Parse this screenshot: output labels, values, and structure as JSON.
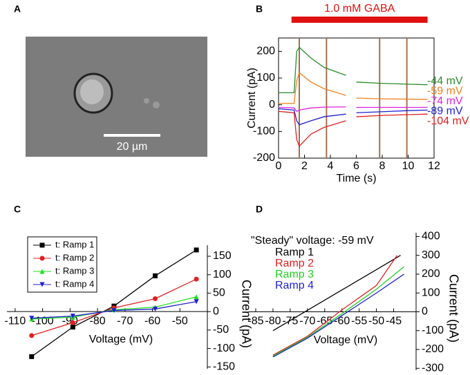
{
  "panel_a": {
    "label": "A",
    "scale_bar": "20 µm"
  },
  "chart_data": [
    {
      "type": "line",
      "label": "B",
      "annotation": "1.0 mM GABA",
      "gaba_bar": [
        1.0,
        11.5
      ],
      "ramps": [
        1.6,
        3.7,
        7.8,
        9.9
      ],
      "x_label": "Time (s)",
      "y_label": "Current (pA)",
      "xlim": [
        0,
        12
      ],
      "xticks": [
        0,
        2,
        4,
        6,
        8,
        10,
        12
      ],
      "ylim": [
        -200,
        250
      ],
      "yticks": [
        -200,
        -100,
        0,
        100,
        200
      ],
      "x": [
        0,
        1.2,
        1.4,
        1.6,
        2.5,
        3.5,
        5.2,
        5.6,
        6.0,
        8,
        10,
        11.5
      ],
      "series": [
        {
          "name": "-44 mV",
          "color": "#2a8a2a",
          "values": [
            45,
            45,
            200,
            215,
            175,
            140,
            110,
            null,
            85,
            80,
            77,
            75
          ]
        },
        {
          "name": "-59 mV",
          "color": "#f08020",
          "values": [
            5,
            5,
            90,
            120,
            85,
            60,
            35,
            null,
            25,
            22,
            21,
            20
          ]
        },
        {
          "name": "-74 mV",
          "color": "#e020e0",
          "values": [
            -10,
            -12,
            -25,
            -20,
            -12,
            -9,
            -8,
            null,
            -10,
            -10,
            -10,
            -10
          ]
        },
        {
          "name": "-89 mV",
          "color": "#2020d0",
          "values": [
            -15,
            -20,
            -60,
            -75,
            -60,
            -45,
            -35,
            null,
            -30,
            -26,
            -22,
            -20
          ]
        },
        {
          "name": "-104 mV",
          "color": "#e02020",
          "values": [
            -25,
            -30,
            -130,
            -155,
            -110,
            -85,
            -60,
            null,
            -45,
            -40,
            -37,
            -35
          ]
        }
      ]
    },
    {
      "type": "line",
      "label": "C",
      "x_label": "Voltage (mV)",
      "y_label": "Current (pA)",
      "xlim": [
        -113,
        -40
      ],
      "xticks": [
        -110,
        -100,
        -90,
        -80,
        -70,
        -60,
        -50
      ],
      "ylim": [
        -155,
        180
      ],
      "yticks": [
        -150,
        -100,
        -50,
        0,
        50,
        100,
        150
      ],
      "x": [
        -104,
        -89,
        -74,
        -59,
        -44
      ],
      "series": [
        {
          "name": "t: Ramp 1",
          "color": "#000000",
          "marker": "square",
          "values": [
            -122,
            -42,
            15,
            97,
            167
          ]
        },
        {
          "name": "t: Ramp 2",
          "color": "#e02020",
          "marker": "circle",
          "values": [
            -65,
            -30,
            10,
            35,
            88
          ]
        },
        {
          "name": "t: Ramp 3",
          "color": "#20e020",
          "marker": "triangle-up",
          "values": [
            -20,
            -15,
            5,
            12,
            40
          ]
        },
        {
          "name": "t: Ramp 4",
          "color": "#2020d0",
          "marker": "triangle-down",
          "values": [
            -18,
            -12,
            3,
            7,
            27
          ]
        }
      ]
    },
    {
      "type": "line",
      "label": "D",
      "annotation": "\"Steady\" voltage: -59 mV",
      "x_label": "Voltage (mV)",
      "y_label": "Current (pA)",
      "xlim": [
        -87,
        -38.5
      ],
      "xticks": [
        -85,
        -80,
        -75,
        -70,
        -65,
        -60,
        -55,
        -50,
        -45
      ],
      "ylim": [
        -310,
        420
      ],
      "yticks": [
        -300,
        -200,
        -100,
        0,
        100,
        200,
        300,
        400
      ],
      "series": [
        {
          "name": "Ramp 1",
          "color": "#000000",
          "x": [
            -80,
            -70,
            -60,
            -50,
            -43
          ],
          "values": [
            -100,
            8,
            116,
            224,
            300
          ]
        },
        {
          "name": "Ramp 2",
          "color": "#e02020",
          "x": [
            -80,
            -70,
            -60,
            -50,
            -44
          ],
          "values": [
            -230,
            -130,
            10,
            140,
            300
          ]
        },
        {
          "name": "Ramp 3",
          "color": "#20d020",
          "x": [
            -80,
            -70,
            -60,
            -50,
            -42
          ],
          "values": [
            -235,
            -135,
            -10,
            120,
            240
          ]
        },
        {
          "name": "Ramp 4",
          "color": "#2020d0",
          "x": [
            -80,
            -70,
            -60,
            -50,
            -42
          ],
          "values": [
            -240,
            -140,
            -20,
            100,
            200
          ]
        }
      ]
    }
  ]
}
